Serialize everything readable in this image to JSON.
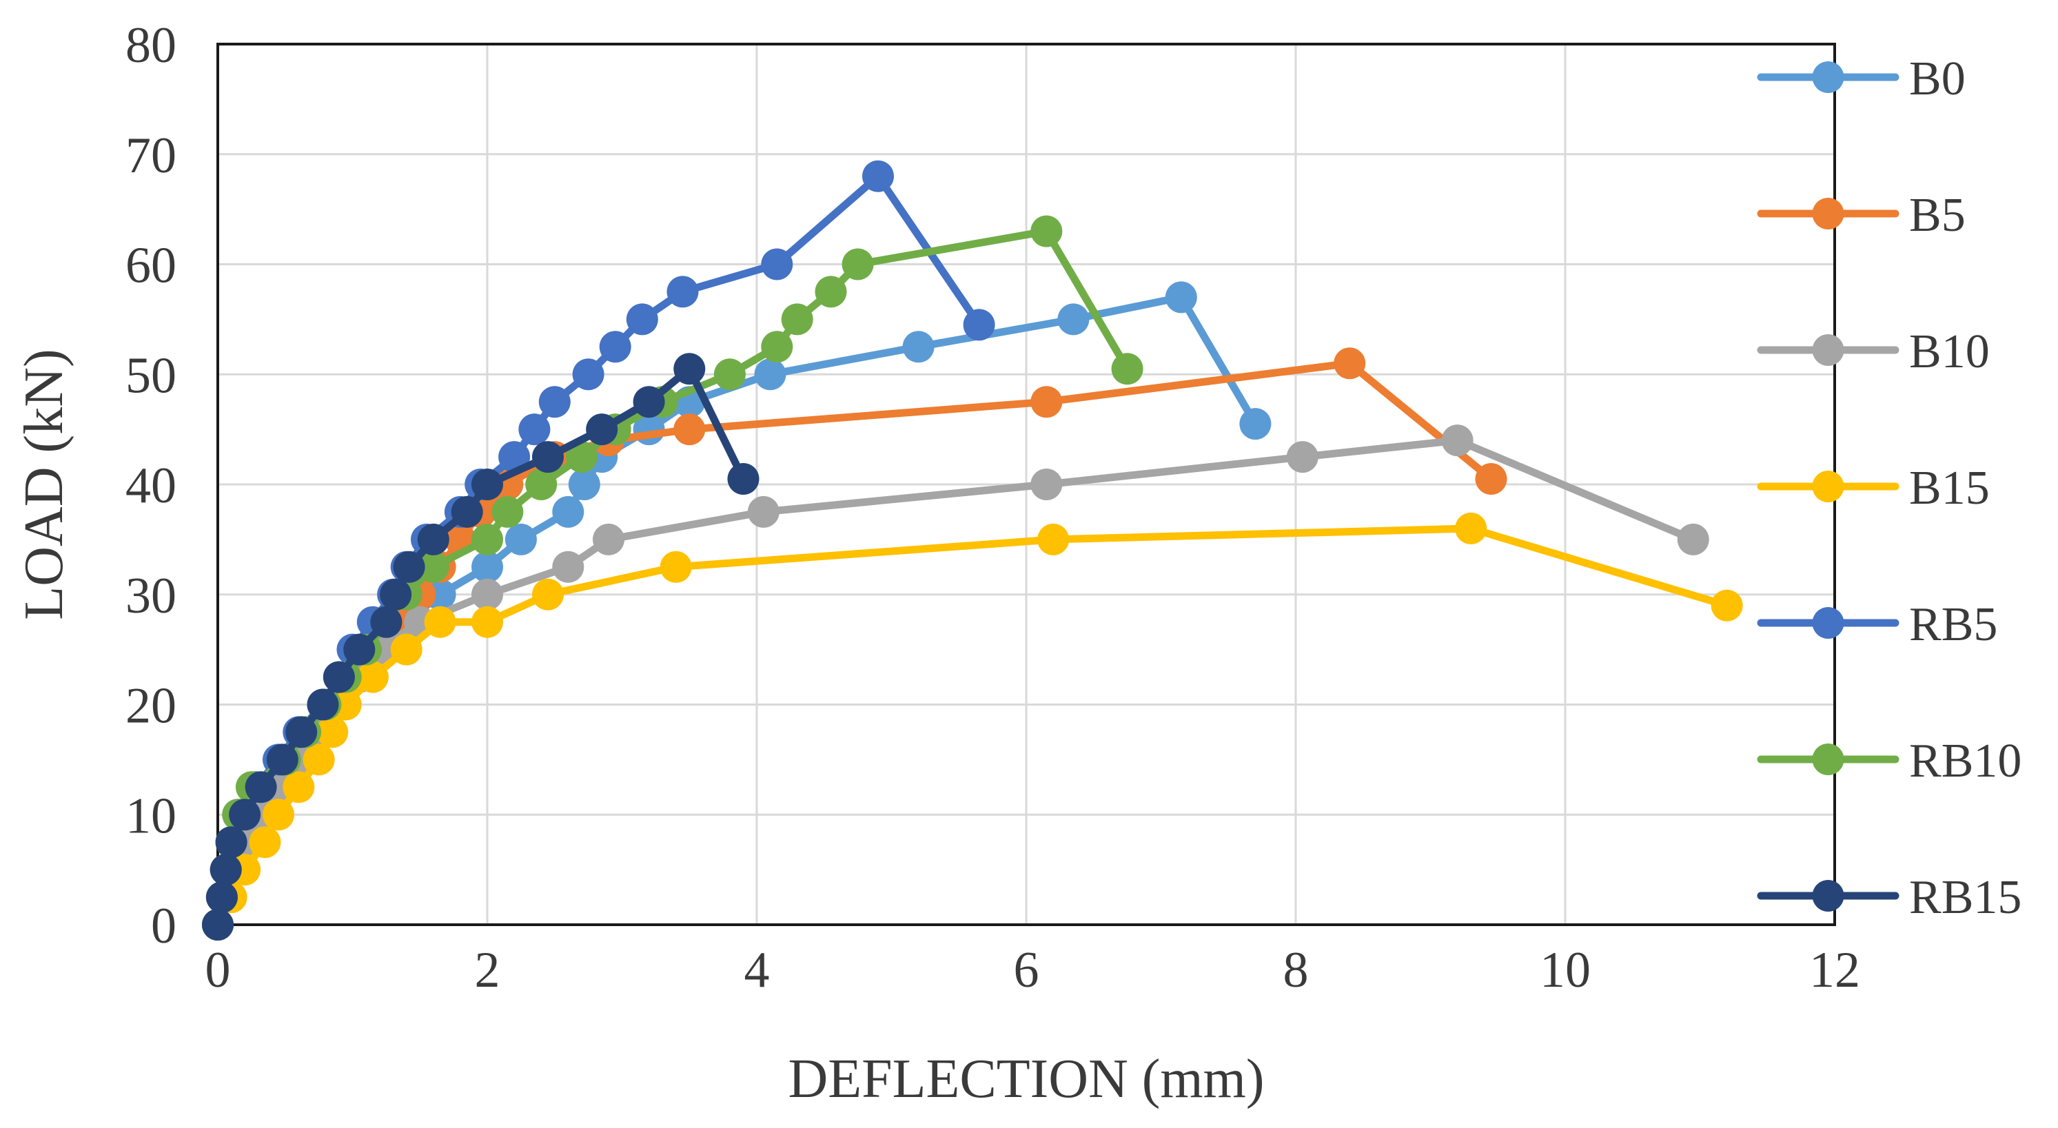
{
  "chart_data": {
    "type": "line",
    "title": "",
    "xlabel": "DEFLECTION (mm)",
    "ylabel": "LOAD (kN)",
    "xlim": [
      0,
      12
    ],
    "ylim": [
      0,
      80
    ],
    "xticks": [
      0,
      2,
      4,
      6,
      8,
      10,
      12
    ],
    "yticks": [
      0,
      10,
      20,
      30,
      40,
      50,
      60,
      70,
      80
    ],
    "grid": true,
    "legend_position": "right",
    "series": [
      {
        "name": "B0",
        "color": "#5b9bd5",
        "points": [
          [
            0,
            0
          ],
          [
            0.05,
            2.5
          ],
          [
            0.1,
            5
          ],
          [
            0.15,
            7.5
          ],
          [
            0.22,
            10
          ],
          [
            0.35,
            12.5
          ],
          [
            0.5,
            15
          ],
          [
            0.65,
            17.5
          ],
          [
            0.8,
            20
          ],
          [
            0.95,
            22.5
          ],
          [
            1.15,
            25
          ],
          [
            1.4,
            27.5
          ],
          [
            1.65,
            30
          ],
          [
            2.0,
            32.5
          ],
          [
            2.25,
            35
          ],
          [
            2.6,
            37.5
          ],
          [
            2.72,
            40
          ],
          [
            2.85,
            42.5
          ],
          [
            3.2,
            45
          ],
          [
            3.5,
            47.5
          ],
          [
            4.1,
            50
          ],
          [
            5.2,
            52.5
          ],
          [
            6.35,
            55
          ],
          [
            7.15,
            57
          ],
          [
            7.7,
            45.5
          ]
        ]
      },
      {
        "name": "B5",
        "color": "#ed7d31",
        "points": [
          [
            0,
            0
          ],
          [
            0.05,
            2.5
          ],
          [
            0.1,
            5
          ],
          [
            0.2,
            7.5
          ],
          [
            0.3,
            10
          ],
          [
            0.42,
            12.5
          ],
          [
            0.55,
            15
          ],
          [
            0.7,
            17.5
          ],
          [
            0.85,
            20
          ],
          [
            1.0,
            22.5
          ],
          [
            1.15,
            25
          ],
          [
            1.35,
            27.5
          ],
          [
            1.5,
            30
          ],
          [
            1.65,
            32.5
          ],
          [
            1.8,
            35
          ],
          [
            1.95,
            37.5
          ],
          [
            2.15,
            40
          ],
          [
            2.5,
            42.5
          ],
          [
            2.9,
            44
          ],
          [
            3.5,
            45
          ],
          [
            6.15,
            47.5
          ],
          [
            8.4,
            51
          ],
          [
            9.45,
            40.5
          ]
        ]
      },
      {
        "name": "B10",
        "color": "#a5a5a5",
        "points": [
          [
            0,
            0
          ],
          [
            0.05,
            2.5
          ],
          [
            0.1,
            5
          ],
          [
            0.2,
            7.5
          ],
          [
            0.3,
            10
          ],
          [
            0.45,
            12.5
          ],
          [
            0.6,
            15
          ],
          [
            0.75,
            17.5
          ],
          [
            0.9,
            20
          ],
          [
            1.05,
            22.5
          ],
          [
            1.2,
            25
          ],
          [
            1.5,
            27.5
          ],
          [
            2.0,
            30
          ],
          [
            2.6,
            32.5
          ],
          [
            2.9,
            35
          ],
          [
            4.05,
            37.5
          ],
          [
            6.15,
            40
          ],
          [
            8.05,
            42.5
          ],
          [
            9.2,
            44
          ],
          [
            10.95,
            35
          ]
        ]
      },
      {
        "name": "B15",
        "color": "#ffc000",
        "points": [
          [
            0,
            0
          ],
          [
            0.1,
            2.5
          ],
          [
            0.2,
            5
          ],
          [
            0.35,
            7.5
          ],
          [
            0.45,
            10
          ],
          [
            0.6,
            12.5
          ],
          [
            0.75,
            15
          ],
          [
            0.85,
            17.5
          ],
          [
            0.95,
            20
          ],
          [
            1.15,
            22.5
          ],
          [
            1.4,
            25
          ],
          [
            1.65,
            27.5
          ],
          [
            2.0,
            27.5
          ],
          [
            2.45,
            30
          ],
          [
            3.4,
            32.5
          ],
          [
            6.2,
            35
          ],
          [
            9.3,
            36
          ],
          [
            11.2,
            29
          ]
        ]
      },
      {
        "name": "RB5",
        "color": "#4472c4",
        "points": [
          [
            0,
            0
          ],
          [
            0.03,
            2.5
          ],
          [
            0.06,
            5
          ],
          [
            0.1,
            7.5
          ],
          [
            0.15,
            10
          ],
          [
            0.28,
            12.5
          ],
          [
            0.45,
            15
          ],
          [
            0.6,
            17.5
          ],
          [
            0.78,
            20
          ],
          [
            0.9,
            22.5
          ],
          [
            1.0,
            25
          ],
          [
            1.15,
            27.5
          ],
          [
            1.3,
            30
          ],
          [
            1.4,
            32.5
          ],
          [
            1.55,
            35
          ],
          [
            1.8,
            37.5
          ],
          [
            1.95,
            40
          ],
          [
            2.2,
            42.5
          ],
          [
            2.35,
            45
          ],
          [
            2.5,
            47.5
          ],
          [
            2.75,
            50
          ],
          [
            2.95,
            52.5
          ],
          [
            3.15,
            55
          ],
          [
            3.45,
            57.5
          ],
          [
            4.15,
            60
          ],
          [
            4.9,
            68
          ],
          [
            5.65,
            54.5
          ]
        ]
      },
      {
        "name": "RB10",
        "color": "#70ad47",
        "points": [
          [
            0,
            0
          ],
          [
            0.03,
            2.5
          ],
          [
            0.06,
            5
          ],
          [
            0.1,
            7.5
          ],
          [
            0.15,
            10
          ],
          [
            0.25,
            12.5
          ],
          [
            0.5,
            15
          ],
          [
            0.65,
            17.5
          ],
          [
            0.8,
            20
          ],
          [
            0.95,
            22.5
          ],
          [
            1.1,
            25
          ],
          [
            1.25,
            27.5
          ],
          [
            1.4,
            30
          ],
          [
            1.6,
            32.5
          ],
          [
            2.0,
            35
          ],
          [
            2.15,
            37.5
          ],
          [
            2.4,
            40
          ],
          [
            2.7,
            42.5
          ],
          [
            2.95,
            45
          ],
          [
            3.3,
            47.5
          ],
          [
            3.8,
            50
          ],
          [
            4.15,
            52.5
          ],
          [
            4.3,
            55
          ],
          [
            4.55,
            57.5
          ],
          [
            4.75,
            60
          ],
          [
            6.15,
            63
          ],
          [
            6.75,
            50.5
          ]
        ]
      },
      {
        "name": "RB15",
        "color": "#264478",
        "points": [
          [
            0,
            0
          ],
          [
            0.03,
            2.5
          ],
          [
            0.06,
            5
          ],
          [
            0.1,
            7.5
          ],
          [
            0.2,
            10
          ],
          [
            0.32,
            12.5
          ],
          [
            0.48,
            15
          ],
          [
            0.62,
            17.5
          ],
          [
            0.78,
            20
          ],
          [
            0.9,
            22.5
          ],
          [
            1.05,
            25
          ],
          [
            1.25,
            27.5
          ],
          [
            1.32,
            30
          ],
          [
            1.42,
            32.5
          ],
          [
            1.6,
            35
          ],
          [
            1.85,
            37.5
          ],
          [
            2.0,
            40
          ],
          [
            2.45,
            42.5
          ],
          [
            2.85,
            45
          ],
          [
            3.2,
            47.5
          ],
          [
            3.5,
            50.5
          ],
          [
            3.9,
            40.5
          ]
        ]
      }
    ]
  }
}
